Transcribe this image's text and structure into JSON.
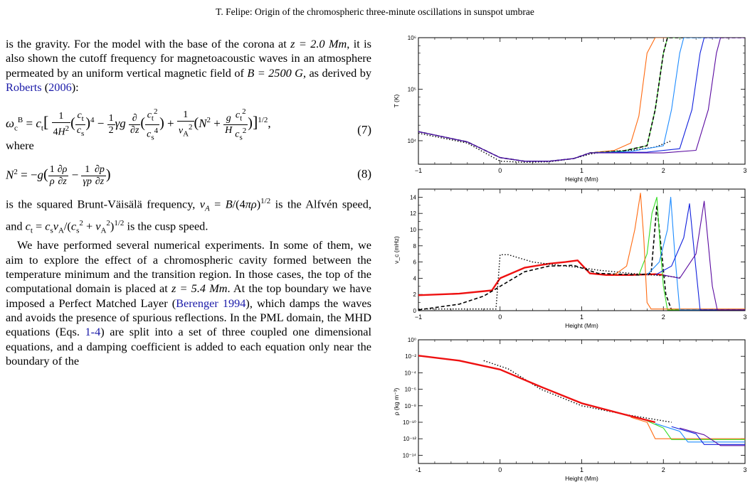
{
  "header": {
    "running_title": "T. Felipe: Origin of the chromospheric three-minute oscillations in sunspot umbrae"
  },
  "text": {
    "intro": {
      "pre1": "is the gravity. For the model with the base of the corona at ",
      "math1": "z = 2.0 Mm",
      "mid1": ", it is also shown the cutoff frequency for magnetoacoustic waves in an atmosphere permeated by an uniform vertical magnetic field of ",
      "math2": "B = 2500 G",
      "mid2": ", as derived by ",
      "cite_author": "Roberts",
      "cite_year": "2006",
      "post": "):"
    },
    "eq7_number": "(7)",
    "where": "where",
    "eq8_number": "(8)",
    "after_eq8": {
      "t1": "is the squared Brunt-Väisälä frequency, ",
      "m1": "v",
      "t2": " is the Alfvén speed, and ",
      "t3": " is the cusp speed."
    },
    "para2": {
      "p1": "We have performed several numerical experiments. In some of them, we aim to explore the effect of a chromospheric cavity formed between the temperature minimum and the transition region. In those cases, the top of the computational domain is placed at ",
      "math": "z = 5.4 Mm",
      "p2": ". At the top boundary we have imposed a Perfect Matched Layer (",
      "cite1": "Berenger 1994",
      "p3": "), which damps the waves and avoids the presence of spurious reflections. In the PML domain, the MHD equations (Eqs. ",
      "eqref": "1-4",
      "p4": ") are split into a set of three coupled one dimensional equations, and a damping coefficient is added to each equation only near the boundary of the"
    }
  },
  "colors": {
    "orange": "#ff6a10",
    "green": "#33dd22",
    "lightblue": "#1e8cff",
    "blue": "#1020dd",
    "purple": "#5a0aa0",
    "red": "#ee1010",
    "black": "#000000"
  },
  "chart_data": [
    {
      "type": "line",
      "xlabel": "Height (Mm)",
      "ylabel": "T (K)",
      "y_scale": "log",
      "xlim": [
        -1,
        3
      ],
      "ylim": [
        3500,
        1000000
      ],
      "x_ticks": [
        "−1",
        "0",
        "1",
        "2",
        "3"
      ],
      "y_ticks": [
        "10⁴",
        "10⁵",
        "10⁶"
      ],
      "series": [
        {
          "style": "dotted",
          "color": "black",
          "x": [
            -1,
            -0.4,
            0,
            0.3,
            0.6,
            0.9,
            1.1,
            1.3,
            1.6,
            1.9,
            2.1
          ],
          "y": [
            14000,
            9000,
            4000,
            3800,
            3900,
            4500,
            5500,
            6200,
            6500,
            7500,
            10000
          ]
        },
        {
          "style": "solid",
          "color": "orange",
          "x": [
            -1,
            -0.4,
            0,
            0.3,
            0.6,
            0.9,
            1.1,
            1.4,
            1.6,
            1.7,
            1.8,
            1.9,
            3
          ],
          "y": [
            15000,
            9500,
            4700,
            4000,
            4000,
            4500,
            5800,
            6500,
            9000,
            30000,
            500000,
            1000000,
            1000000
          ]
        },
        {
          "style": "solid",
          "color": "green",
          "x": [
            -1,
            -0.4,
            0,
            0.3,
            0.6,
            0.9,
            1.1,
            1.5,
            1.8,
            1.9,
            2.0,
            2.05,
            3
          ],
          "y": [
            15000,
            9500,
            4700,
            4000,
            4000,
            4500,
            5800,
            6300,
            8000,
            40000,
            500000,
            1000000,
            1000000
          ]
        },
        {
          "style": "dashed",
          "color": "black",
          "x": [
            -1,
            -0.4,
            0,
            0.3,
            0.6,
            0.9,
            1.1,
            1.5,
            1.8,
            1.9,
            2.0,
            2.05,
            3
          ],
          "y": [
            15000,
            9500,
            4700,
            4000,
            4000,
            4500,
            5800,
            6300,
            8000,
            40000,
            500000,
            1000000,
            1000000
          ]
        },
        {
          "style": "solid",
          "color": "lightblue",
          "x": [
            -1,
            -0.4,
            0,
            0.3,
            0.6,
            0.9,
            1.1,
            1.6,
            2.0,
            2.1,
            2.2,
            2.25,
            3
          ],
          "y": [
            15000,
            9500,
            4700,
            4000,
            4000,
            4500,
            5800,
            6200,
            8000,
            40000,
            500000,
            1000000,
            1000000
          ]
        },
        {
          "style": "solid",
          "color": "blue",
          "x": [
            -1,
            -0.4,
            0,
            0.3,
            0.6,
            0.9,
            1.1,
            1.8,
            2.2,
            2.35,
            2.45,
            2.5,
            3
          ],
          "y": [
            15000,
            9500,
            4700,
            4000,
            4000,
            4500,
            5800,
            6000,
            7000,
            40000,
            500000,
            1000000,
            1000000
          ]
        },
        {
          "style": "solid",
          "color": "purple",
          "x": [
            -1,
            -0.4,
            0,
            0.3,
            0.6,
            0.9,
            1.1,
            2.0,
            2.4,
            2.55,
            2.65,
            2.7,
            3
          ],
          "y": [
            15000,
            9500,
            4700,
            4000,
            4000,
            4500,
            5800,
            5800,
            6500,
            40000,
            500000,
            1000000,
            1000000
          ]
        }
      ]
    },
    {
      "type": "line",
      "xlabel": "Height (Mm)",
      "ylabel": "ν_c (mHz)",
      "xlim": [
        -1,
        3
      ],
      "ylim": [
        0,
        15
      ],
      "x_ticks": [
        "−1",
        "0",
        "1",
        "2",
        "3"
      ],
      "y_ticks": [
        "0",
        "2",
        "4",
        "6",
        "8",
        "10",
        "12",
        "14"
      ],
      "series": [
        {
          "style": "solid",
          "color": "red",
          "x": [
            -1,
            -0.5,
            -0.1,
            0.0,
            0.3,
            0.6,
            0.8,
            0.95,
            1.1,
            1.3,
            1.6,
            1.9,
            2.0
          ],
          "y": [
            1.9,
            2.1,
            2.5,
            4.0,
            5.3,
            5.8,
            6.0,
            6.2,
            4.6,
            4.4,
            4.4,
            4.5,
            4.4
          ]
        },
        {
          "style": "dotted",
          "color": "black",
          "x": [
            -1,
            -0.3,
            -0.05,
            0.0,
            0.1,
            0.4,
            0.8,
            1.0,
            1.2,
            1.6,
            2.0,
            2.2
          ],
          "y": [
            0.2,
            0.2,
            0.2,
            6.9,
            6.9,
            6.0,
            5.5,
            5.3,
            5.0,
            4.6,
            4.3,
            4.1
          ]
        },
        {
          "style": "dashed",
          "color": "black",
          "x": [
            -1,
            -0.5,
            -0.2,
            0.0,
            0.3,
            0.6,
            0.9,
            1.2,
            1.7,
            1.85,
            1.92,
            1.98,
            2.03,
            2.1,
            3
          ],
          "y": [
            0.1,
            0.8,
            1.8,
            3.0,
            4.8,
            5.5,
            5.6,
            4.6,
            4.4,
            4.6,
            13.0,
            7.0,
            2.0,
            0.1,
            0.1
          ]
        },
        {
          "style": "solid",
          "color": "green",
          "x": [
            1.7,
            1.8,
            1.86,
            1.92,
            1.96,
            2.0,
            2.05,
            3
          ],
          "y": [
            4.4,
            7.0,
            12.0,
            14.0,
            8.0,
            3.0,
            0.1,
            0.1
          ]
        },
        {
          "style": "solid",
          "color": "orange",
          "x": [
            1.4,
            1.55,
            1.65,
            1.72,
            1.76,
            1.8,
            1.85,
            3
          ],
          "y": [
            4.4,
            5.5,
            10.0,
            14.5,
            9.0,
            1.0,
            0.2,
            0.2
          ]
        },
        {
          "style": "solid",
          "color": "lightblue",
          "x": [
            1.8,
            1.95,
            2.05,
            2.09,
            2.14,
            2.2,
            3
          ],
          "y": [
            4.4,
            6.0,
            10.0,
            14.0,
            7.0,
            0.1,
            0.1
          ]
        },
        {
          "style": "solid",
          "color": "blue",
          "x": [
            1.9,
            2.1,
            2.25,
            2.32,
            2.38,
            2.45,
            3
          ],
          "y": [
            4.4,
            5.5,
            9.0,
            13.2,
            7.0,
            0.1,
            0.1
          ]
        },
        {
          "style": "solid",
          "color": "purple",
          "x": [
            2.0,
            2.2,
            2.4,
            2.5,
            2.6,
            2.66,
            3
          ],
          "y": [
            4.4,
            4.0,
            7.0,
            13.5,
            3.0,
            0.1,
            0.1
          ]
        }
      ]
    },
    {
      "type": "line",
      "xlabel": "Height (Mm)",
      "ylabel": "ρ (kg m⁻³)",
      "y_scale": "log",
      "xlim": [
        -1,
        3
      ],
      "ylim": [
        1e-15,
        1
      ],
      "x_ticks": [
        "-1",
        "0",
        "1",
        "2",
        "3"
      ],
      "y_ticks": [
        "10⁰",
        "10⁻²",
        "10⁻⁴",
        "10⁻⁶",
        "10⁻⁸",
        "10⁻¹⁰",
        "10⁻¹²",
        "10⁻¹⁴"
      ],
      "series": [
        {
          "style": "dotted",
          "color": "black",
          "x": [
            -0.2,
            0.1,
            0.5,
            1.0,
            1.5,
            2.1
          ],
          "y": [
            0.003,
            0.0003,
            1e-06,
            1e-08,
            1e-09,
            1e-10
          ]
        },
        {
          "style": "solid",
          "color": "orange",
          "x": [
            1.6,
            1.8,
            1.9,
            3
          ],
          "y": [
            4e-10,
            1e-10,
            1e-12,
            1e-12
          ]
        },
        {
          "style": "solid",
          "color": "green",
          "x": [
            1.8,
            2.0,
            2.1,
            3
          ],
          "y": [
            1.5e-10,
            2e-11,
            8e-13,
            8e-13
          ]
        },
        {
          "style": "solid",
          "color": "lightblue",
          "x": [
            1.9,
            2.2,
            2.3,
            3
          ],
          "y": [
            7e-11,
            8e-12,
            4e-13,
            4e-13
          ]
        },
        {
          "style": "solid",
          "color": "blue",
          "x": [
            2.1,
            2.4,
            2.5,
            3
          ],
          "y": [
            3e-11,
            4e-12,
            2e-13,
            2e-13
          ]
        },
        {
          "style": "solid",
          "color": "purple",
          "x": [
            2.2,
            2.5,
            2.7,
            3
          ],
          "y": [
            2e-11,
            3e-12,
            1.5e-13,
            1.5e-13
          ]
        },
        {
          "style": "solid",
          "color": "red",
          "x": [
            -1,
            -0.5,
            0,
            0.5,
            1.0,
            1.5,
            1.9
          ],
          "y": [
            0.012,
            0.003,
            0.00025,
            2e-06,
            2e-08,
            1e-09,
            1e-10
          ]
        }
      ]
    }
  ]
}
